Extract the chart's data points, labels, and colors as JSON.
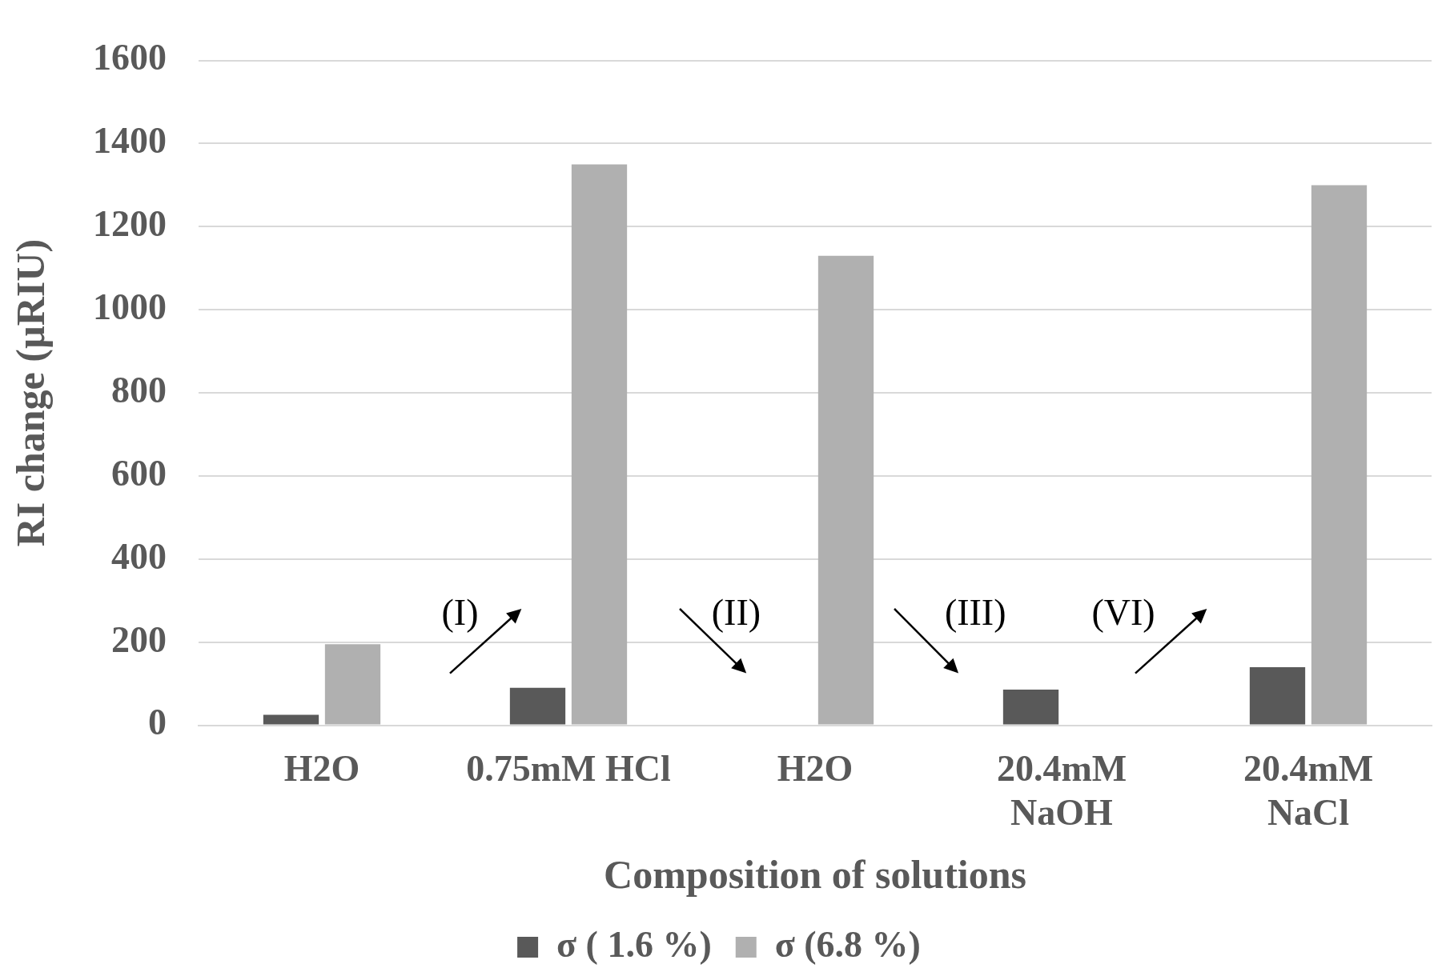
{
  "chart_data": {
    "type": "bar",
    "xlabel": "Composition of solutions",
    "ylabel": "RI change (µRIU)",
    "categories": [
      "H2O",
      "0.75mM HCl",
      "H2O",
      "20.4mM NaOH",
      "20.4mM NaCl"
    ],
    "series": [
      {
        "name": "σ ( 1.6 %)",
        "color": "#595959",
        "values": [
          25,
          90,
          null,
          86,
          140
        ]
      },
      {
        "name": "σ (6.8 %)",
        "color": "#b0b0b0",
        "values": [
          195,
          1350,
          1130,
          null,
          1300
        ]
      }
    ],
    "ylim": [
      0,
      1600
    ],
    "yticks": [
      0,
      200,
      400,
      600,
      800,
      1000,
      1200,
      1400,
      1600
    ],
    "grid": "y",
    "legend": "bottom",
    "annotations": [
      "(I)",
      "(II)",
      "(III)",
      "(VI)"
    ]
  }
}
